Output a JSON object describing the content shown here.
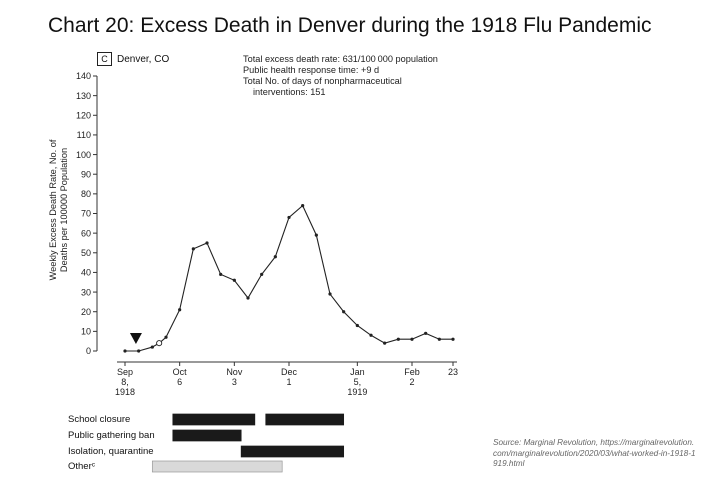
{
  "title": "Chart 20: Excess Death in Denver during the 1918 Flu Pandemic",
  "panel": {
    "letter": "C",
    "location": "Denver, CO"
  },
  "stats": {
    "line1": "Total excess death rate: 631/100 000 population",
    "line2": "Public health response time: +9 d",
    "line3": "Total No. of days of nonpharmaceutical",
    "line4": "interventions: 151"
  },
  "axis": {
    "ylabel_line1": "Weekly Excess Death Rate, No. of",
    "ylabel_line2": "Deaths per 100000 Population"
  },
  "interventions": {
    "labels": [
      "School closure",
      "Public gathering ban",
      "Isolation, quarantine",
      "Otherᶜ"
    ]
  },
  "source": "Source: Marginal Revolution, https://marginalrevolution.com/marginalrevolution/2020/03/what-worked-in-1918-1919.html",
  "chart_data": {
    "type": "line",
    "ylim": [
      0,
      140
    ],
    "yticks": [
      0,
      10,
      20,
      30,
      40,
      50,
      60,
      70,
      80,
      90,
      100,
      110,
      120,
      130,
      140
    ],
    "xlim": [
      0,
      24
    ],
    "xticks": [
      {
        "week": 0,
        "lines": [
          "Sep",
          "8,",
          "1918"
        ]
      },
      {
        "week": 4,
        "lines": [
          "Oct",
          "6"
        ]
      },
      {
        "week": 8,
        "lines": [
          "Nov",
          "3"
        ]
      },
      {
        "week": 12,
        "lines": [
          "Dec",
          "1"
        ]
      },
      {
        "week": 17,
        "lines": [
          "Jan",
          "5,",
          "1919"
        ]
      },
      {
        "week": 21,
        "lines": [
          "Feb",
          "2"
        ]
      },
      {
        "week": 24,
        "lines": [
          "23"
        ]
      }
    ],
    "series": [
      {
        "weeks": [
          0,
          1,
          2,
          2.5,
          3,
          4,
          5,
          6,
          7,
          8,
          9,
          10,
          11,
          12,
          13,
          14,
          15,
          16,
          17,
          18,
          19,
          20,
          21,
          22,
          23,
          24
        ],
        "values": [
          0,
          0,
          2,
          4,
          7,
          21,
          52,
          55,
          39,
          36,
          27,
          39,
          48,
          68,
          74,
          59,
          29,
          20,
          13,
          8,
          4,
          6,
          6,
          9,
          6,
          6
        ]
      }
    ],
    "open_marker_week": 2.5,
    "response_marker_week": 0.8,
    "intervention_periods": [
      {
        "name": "School closure",
        "periods": [
          [
            3.5,
            9.5
          ],
          [
            10.3,
            16
          ]
        ],
        "color": "#1a1a1a"
      },
      {
        "name": "Public gathering ban",
        "periods": [
          [
            3.5,
            8.5
          ]
        ],
        "color": "#1a1a1a"
      },
      {
        "name": "Isolation, quarantine",
        "periods": [
          [
            8.5,
            16
          ]
        ],
        "color": "#1a1a1a"
      },
      {
        "name": "Otherᶜ",
        "periods": [
          [
            2,
            11.5
          ]
        ],
        "color": "#d9d9d9"
      }
    ]
  }
}
